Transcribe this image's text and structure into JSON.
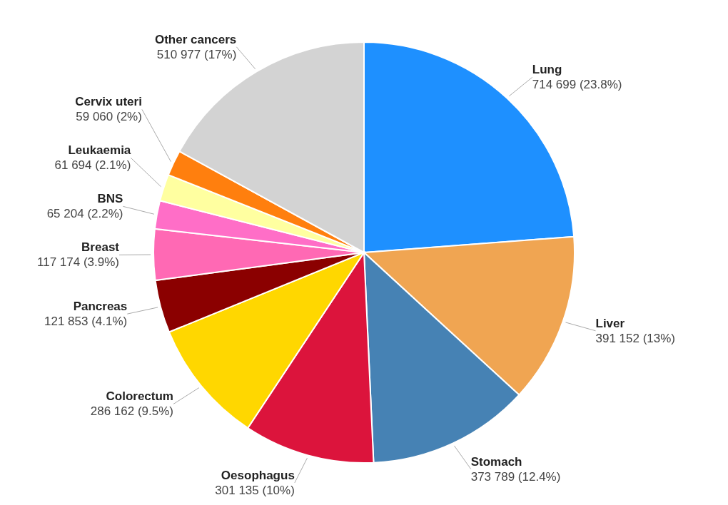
{
  "chart_data": {
    "type": "pie",
    "categories": [
      "Lung",
      "Liver",
      "Stomach",
      "Oesophagus",
      "Colorectum",
      "Pancreas",
      "Breast",
      "BNS",
      "Leukaemia",
      "Cervix uteri",
      "Other cancers"
    ],
    "values": [
      714699,
      391152,
      373789,
      301135,
      286162,
      121853,
      117174,
      65204,
      61694,
      59060,
      510977
    ],
    "value_labels": [
      "714 699 (23.8%)",
      "391 152 (13%)",
      "373 789 (12.4%)",
      "301 135 (10%)",
      "286 162 (9.5%)",
      "121 853 (4.1%)",
      "117 174 (3.9%)",
      "65 204 (2.2%)",
      "61 694 (2.1%)",
      "59 060 (2%)",
      "510 977 (17%)"
    ],
    "colors": [
      "#1e90ff",
      "#f0a552",
      "#4682b4",
      "#dc143c",
      "#ffd700",
      "#8b0000",
      "#ff69b4",
      "#ff6ec7",
      "#ffffa0",
      "#ff7f0e",
      "#d3d3d3"
    ]
  }
}
